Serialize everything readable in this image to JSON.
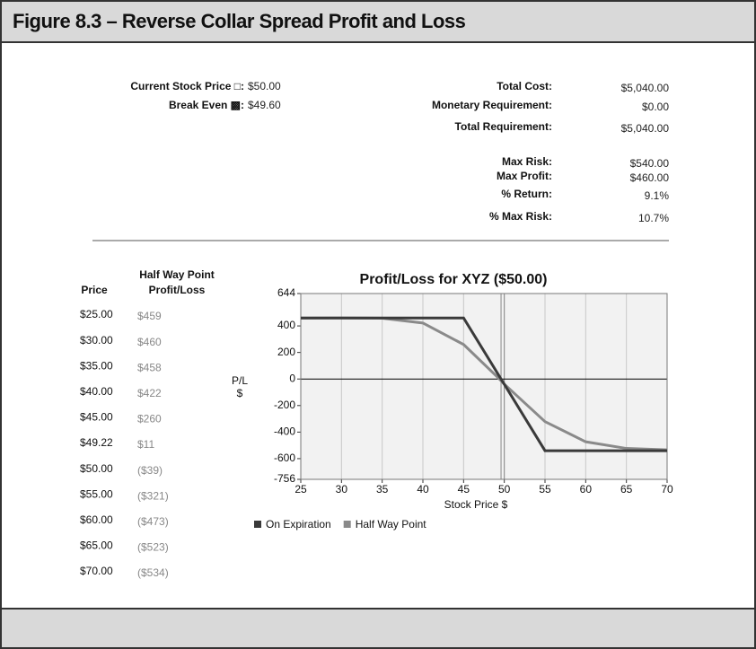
{
  "header": {
    "title": "Figure 8.3 – Reverse Collar Spread Profit and Loss"
  },
  "summary_left": [
    {
      "label": "Current Stock Price □:",
      "value": "$50.00"
    },
    {
      "label": "Break Even ▩:",
      "value": "$49.60"
    }
  ],
  "summary_right": [
    {
      "label": "Total Cost:",
      "value": "$5,040.00"
    },
    {
      "label": "Monetary Requirement:",
      "value": "$0.00"
    },
    {
      "label": "Total Requirement:",
      "value": "$5,040.00"
    },
    {
      "label": "Max Risk:",
      "value": "$540.00"
    },
    {
      "label": "Max Profit:",
      "value": "$460.00"
    },
    {
      "label": "% Return:",
      "value": "9.1%"
    },
    {
      "label": "% Max Risk:",
      "value": "10.7%"
    }
  ],
  "table": {
    "header_top": "Half Way Point",
    "columns": [
      "Price",
      "Profit/Loss"
    ],
    "rows": [
      [
        "$25.00",
        "$459"
      ],
      [
        "$30.00",
        "$460"
      ],
      [
        "$35.00",
        "$458"
      ],
      [
        "$40.00",
        "$422"
      ],
      [
        "$45.00",
        "$260"
      ],
      [
        "$49.22",
        "$11"
      ],
      [
        "$50.00",
        "($39)"
      ],
      [
        "$55.00",
        "($321)"
      ],
      [
        "$60.00",
        "($473)"
      ],
      [
        "$65.00",
        "($523)"
      ],
      [
        "$70.00",
        "($534)"
      ]
    ]
  },
  "chart_data": {
    "type": "line",
    "title": "Profit/Loss for XYZ ($50.00)",
    "xlabel": "Stock Price $",
    "ylabel": "P/L $",
    "xlim": [
      25,
      70
    ],
    "xticks": [
      25,
      30,
      35,
      40,
      45,
      50,
      55,
      60,
      65,
      70
    ],
    "ylim": [
      -756,
      644
    ],
    "yticks": [
      -756,
      -600,
      -400,
      -200,
      0,
      200,
      400,
      644
    ],
    "reference_lines": [
      49.6,
      50
    ],
    "series": [
      {
        "name": "On Expiration",
        "color": "#3a3a3a",
        "x": [
          25,
          30,
          35,
          40,
          45,
          50,
          55,
          60,
          65,
          70
        ],
        "values": [
          460,
          460,
          460,
          460,
          460,
          -40,
          -540,
          -540,
          -540,
          -540
        ]
      },
      {
        "name": "Half Way Point",
        "color": "#8a8a8a",
        "x": [
          25,
          30,
          35,
          40,
          45,
          49.22,
          50,
          55,
          60,
          65,
          70
        ],
        "values": [
          459,
          460,
          458,
          422,
          260,
          11,
          -39,
          -321,
          -473,
          -523,
          -534
        ]
      }
    ]
  }
}
